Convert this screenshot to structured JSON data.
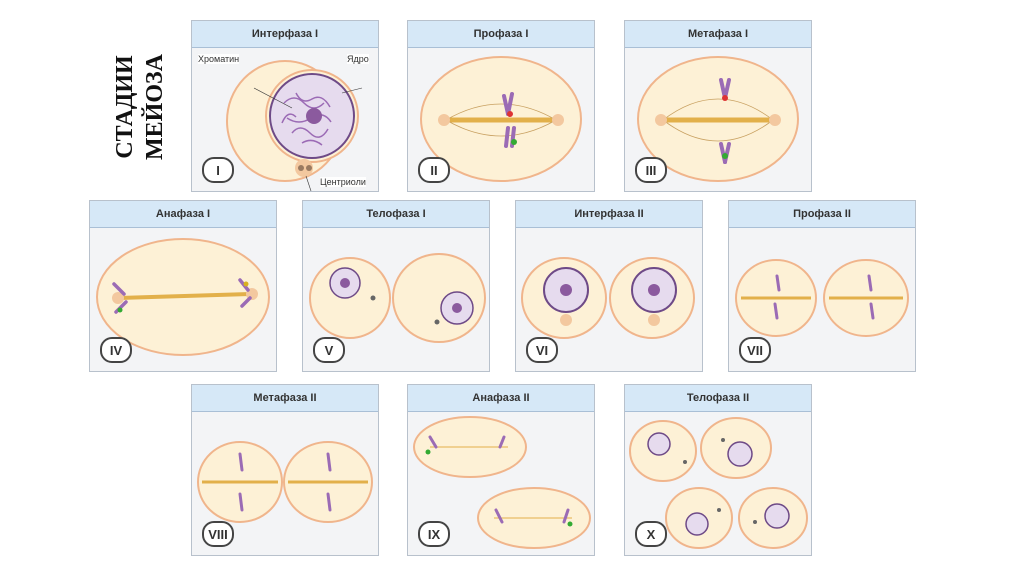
{
  "side_title": {
    "line1": "СТАДИИ",
    "line2": "МЕЙОЗА"
  },
  "panels": [
    {
      "title": "Интерфаза I",
      "num": "I"
    },
    {
      "title": "Профаза I",
      "num": "II"
    },
    {
      "title": "Метафаза I",
      "num": "III"
    },
    {
      "title": "Анафаза I",
      "num": "IV"
    },
    {
      "title": "Телофаза I",
      "num": "V"
    },
    {
      "title": "Интерфаза II",
      "num": "VI"
    },
    {
      "title": "Профаза II",
      "num": "VII"
    },
    {
      "title": "Метафаза II",
      "num": "VIII"
    },
    {
      "title": "Анафаза II",
      "num": "IX"
    },
    {
      "title": "Телофаза II",
      "num": "X"
    }
  ],
  "labels": {
    "chromatin": "Хроматин",
    "nucleus": "Ядро",
    "centrioles": "Центриоли"
  },
  "colors": {
    "cell_fill": "#fdf1d6",
    "cell_border": "#f0b58c",
    "nucleus": "#8b5a9e",
    "spindle": "#e2b04a",
    "chromosome": "#9b6bb5"
  }
}
